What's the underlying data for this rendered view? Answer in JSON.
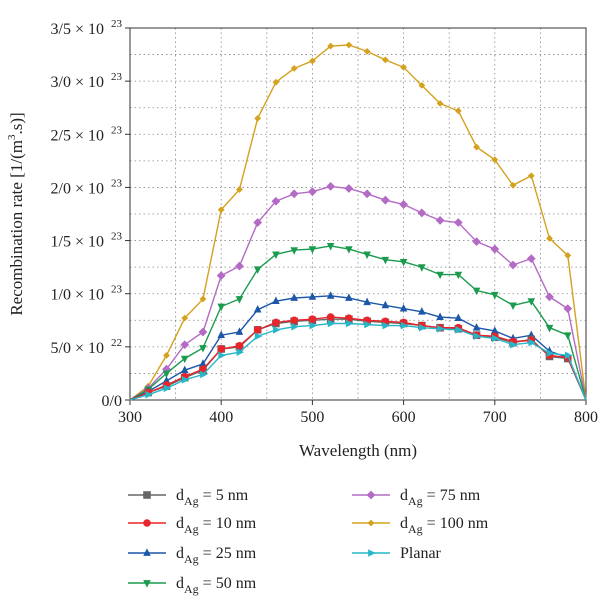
{
  "chart_data": {
    "type": "line",
    "xlabel": "Wavelength (nm)",
    "ylabel_parts": [
      "Recombination rate [1/(m",
      "3",
      ".s)]"
    ],
    "xlim": [
      300,
      800
    ],
    "ylim": [
      0,
      3.5e+23
    ],
    "x_ticks": [
      {
        "value": 300,
        "label": "300"
      },
      {
        "value": 400,
        "label": "400"
      },
      {
        "value": 500,
        "label": "500"
      },
      {
        "value": 600,
        "label": "600"
      },
      {
        "value": 700,
        "label": "700"
      },
      {
        "value": 800,
        "label": "800"
      }
    ],
    "y_ticks": [
      {
        "value": 0,
        "mant": "0/0",
        "exp": ""
      },
      {
        "value": 5e+22,
        "mant": "5/0 × 10",
        "exp": "22"
      },
      {
        "value": 1e+23,
        "mant": "1/0 × 10",
        "exp": "23"
      },
      {
        "value": 1.5e+23,
        "mant": "1/5 × 10",
        "exp": "23"
      },
      {
        "value": 2e+23,
        "mant": "2/0 × 10",
        "exp": "23"
      },
      {
        "value": 2.5e+23,
        "mant": "2/5 × 10",
        "exp": "23"
      },
      {
        "value": 3e+23,
        "mant": "3/0 × 10",
        "exp": "23"
      },
      {
        "value": 3.5e+23,
        "mant": "3/5 × 10",
        "exp": "23"
      }
    ],
    "grid": true,
    "legend_position": "bottom",
    "x": [
      300,
      320,
      340,
      360,
      380,
      400,
      420,
      440,
      460,
      480,
      500,
      520,
      540,
      560,
      580,
      600,
      620,
      640,
      660,
      680,
      700,
      720,
      740,
      760,
      780,
      800
    ],
    "series": [
      {
        "name_main": "d",
        "name_sub": "Ag",
        "name_rest": " = 5 nm",
        "color": "#666666",
        "marker": "square",
        "values": [
          0,
          7e+21,
          1.3e+22,
          2.1e+22,
          2.8e+22,
          4.8e+22,
          5e+22,
          6.6e+22,
          7.2e+22,
          7.4e+22,
          7.5e+22,
          7.6e+22,
          7.6e+22,
          7.4e+22,
          7.3e+22,
          7.2e+22,
          7e+22,
          6.8e+22,
          6.7e+22,
          6.1e+22,
          5.9e+22,
          5.4e+22,
          5.7e+22,
          4.1e+22,
          3.9e+22,
          0
        ]
      },
      {
        "name_main": "d",
        "name_sub": "Ag",
        "name_rest": " = 10 nm",
        "color": "#e8252a",
        "marker": "circle",
        "values": [
          0,
          7e+21,
          1.4e+22,
          2.2e+22,
          2.9e+22,
          4.8e+22,
          5.1e+22,
          6.6e+22,
          7.3e+22,
          7.5e+22,
          7.6e+22,
          7.8e+22,
          7.7e+22,
          7.5e+22,
          7.4e+22,
          7.3e+22,
          7e+22,
          6.8e+22,
          6.8e+22,
          6.1e+22,
          6e+22,
          5.5e+22,
          5.6e+22,
          4.2e+22,
          4e+22,
          0
        ]
      },
      {
        "name_main": "d",
        "name_sub": "Ag",
        "name_rest": " = 25 nm",
        "color": "#1c57a8",
        "marker": "triangle-up",
        "values": [
          0,
          8e+21,
          1.8e+22,
          2.8e+22,
          3.4e+22,
          6.1e+22,
          6.4e+22,
          8.5e+22,
          9.3e+22,
          9.6e+22,
          9.7e+22,
          9.8e+22,
          9.6e+22,
          9.2e+22,
          8.9e+22,
          8.6e+22,
          8.3e+22,
          7.8e+22,
          7.7e+22,
          6.8e+22,
          6.5e+22,
          5.8e+22,
          6.1e+22,
          4.6e+22,
          4e+22,
          0
        ]
      },
      {
        "name_main": "d",
        "name_sub": "Ag",
        "name_rest": " = 50 nm",
        "color": "#1a9b4e",
        "marker": "triangle-down",
        "values": [
          0,
          1e+22,
          2.5e+22,
          3.9e+22,
          4.9e+22,
          8.8e+22,
          9.5e+22,
          1.23e+23,
          1.37e+23,
          1.41e+23,
          1.42e+23,
          1.45e+23,
          1.42e+23,
          1.37e+23,
          1.32e+23,
          1.3e+23,
          1.25e+23,
          1.18e+23,
          1.18e+23,
          1.03e+23,
          9.9e+22,
          8.9e+22,
          9.3e+22,
          6.8e+22,
          6.1e+22,
          0
        ]
      },
      {
        "name_main": "d",
        "name_sub": "Ag",
        "name_rest": " = 75 nm",
        "color": "#b36bc5",
        "marker": "diamond",
        "values": [
          0,
          1.1e+22,
          2.9e+22,
          5.2e+22,
          6.4e+22,
          1.17e+23,
          1.26e+23,
          1.67e+23,
          1.87e+23,
          1.94e+23,
          1.96e+23,
          2.01e+23,
          1.99e+23,
          1.94e+23,
          1.88e+23,
          1.84e+23,
          1.76e+23,
          1.69e+23,
          1.67e+23,
          1.49e+23,
          1.42e+23,
          1.27e+23,
          1.33e+23,
          9.7e+22,
          8.6e+22,
          0
        ]
      },
      {
        "name_main": "d",
        "name_sub": "Ag",
        "name_rest": " = 100 nm",
        "color": "#d4a21f",
        "marker": "diamond-small",
        "values": [
          0,
          1.3e+22,
          4.2e+22,
          7.7e+22,
          9.5e+22,
          1.79e+23,
          1.98e+23,
          2.65e+23,
          2.99e+23,
          3.12e+23,
          3.19e+23,
          3.33e+23,
          3.34e+23,
          3.28e+23,
          3.2e+23,
          3.13e+23,
          2.96e+23,
          2.79e+23,
          2.72e+23,
          2.38e+23,
          2.26e+23,
          2.02e+23,
          2.11e+23,
          1.52e+23,
          1.36e+23,
          0
        ]
      },
      {
        "name_main": "Planar",
        "name_sub": "",
        "name_rest": "",
        "color": "#27b6c8",
        "marker": "triangle-right",
        "values": [
          0,
          5e+21,
          1.1e+22,
          1.9e+22,
          2.4e+22,
          4.2e+22,
          4.5e+22,
          6e+22,
          6.6e+22,
          6.9e+22,
          7e+22,
          7.2e+22,
          7.2e+22,
          7.1e+22,
          7e+22,
          7e+22,
          6.8e+22,
          6.7e+22,
          6.6e+22,
          6e+22,
          5.8e+22,
          5.2e+22,
          5.4e+22,
          4.4e+22,
          4.2e+22,
          0
        ]
      }
    ]
  }
}
